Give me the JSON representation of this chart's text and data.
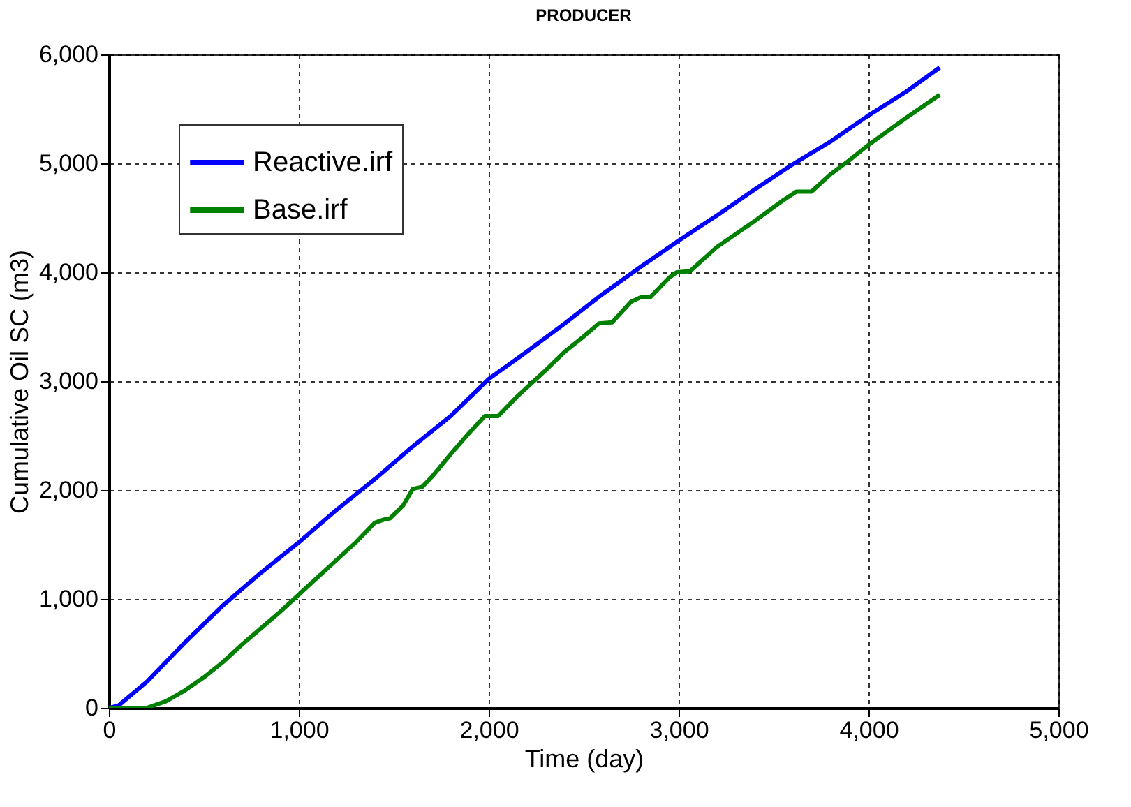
{
  "chart_data": {
    "type": "line",
    "title": "PRODUCER",
    "xlabel": "Time (day)",
    "ylabel": "Cumulative Oil SC (m3)",
    "xlim": [
      0,
      5000
    ],
    "xticks": [
      {
        "value": 0,
        "label": "0"
      },
      {
        "value": 1000,
        "label": "1,000"
      },
      {
        "value": 2000,
        "label": "2,000"
      },
      {
        "value": 3000,
        "label": "3,000"
      },
      {
        "value": 4000,
        "label": "4,000"
      },
      {
        "value": 5000,
        "label": "5,000"
      }
    ],
    "ylim": [
      0,
      6000
    ],
    "yticks": [
      {
        "value": 0,
        "label": "0"
      },
      {
        "value": 1000,
        "label": "1,000"
      },
      {
        "value": 2000,
        "label": "2,000"
      },
      {
        "value": 3000,
        "label": "3,000"
      },
      {
        "value": 4000,
        "label": "4,000"
      },
      {
        "value": 5000,
        "label": "5,000"
      },
      {
        "value": 6000,
        "label": "6,000"
      }
    ],
    "grid": true,
    "legend": "top left",
    "marker": "none",
    "line_style": "solid",
    "series": [
      {
        "name": "Reactive.irf",
        "color": "#0000ff",
        "x": [
          0,
          50,
          200,
          400,
          600,
          800,
          1000,
          1200,
          1400,
          1600,
          1800,
          2000,
          2200,
          2400,
          2600,
          2800,
          3000,
          3200,
          3400,
          3600,
          3800,
          4000,
          4200,
          4375
        ],
        "values": [
          0,
          20,
          240,
          600,
          940,
          1240,
          1520,
          1820,
          2100,
          2400,
          2680,
          3020,
          3270,
          3530,
          3800,
          4050,
          4290,
          4520,
          4760,
          4990,
          5200,
          5440,
          5660,
          5880
        ]
      },
      {
        "name": "Base.irf",
        "color": "#008000",
        "x": [
          0,
          200,
          300,
          400,
          500,
          600,
          700,
          800,
          900,
          1000,
          1100,
          1200,
          1300,
          1400,
          1450,
          1480,
          1550,
          1600,
          1650,
          1700,
          1800,
          1900,
          1980,
          2050,
          2150,
          2300,
          2400,
          2500,
          2580,
          2650,
          2750,
          2800,
          2850,
          2950,
          2990,
          3060,
          3200,
          3400,
          3550,
          3620,
          3700,
          3800,
          3900,
          4000,
          4200,
          4375
        ],
        "values": [
          0,
          0,
          60,
          160,
          280,
          420,
          580,
          730,
          880,
          1040,
          1200,
          1360,
          1520,
          1700,
          1730,
          1740,
          1860,
          2010,
          2030,
          2120,
          2330,
          2530,
          2680,
          2680,
          2860,
          3100,
          3270,
          3410,
          3530,
          3540,
          3730,
          3770,
          3770,
          3950,
          4000,
          4010,
          4230,
          4470,
          4660,
          4740,
          4740,
          4900,
          5030,
          5170,
          5420,
          5630
        ]
      }
    ]
  }
}
